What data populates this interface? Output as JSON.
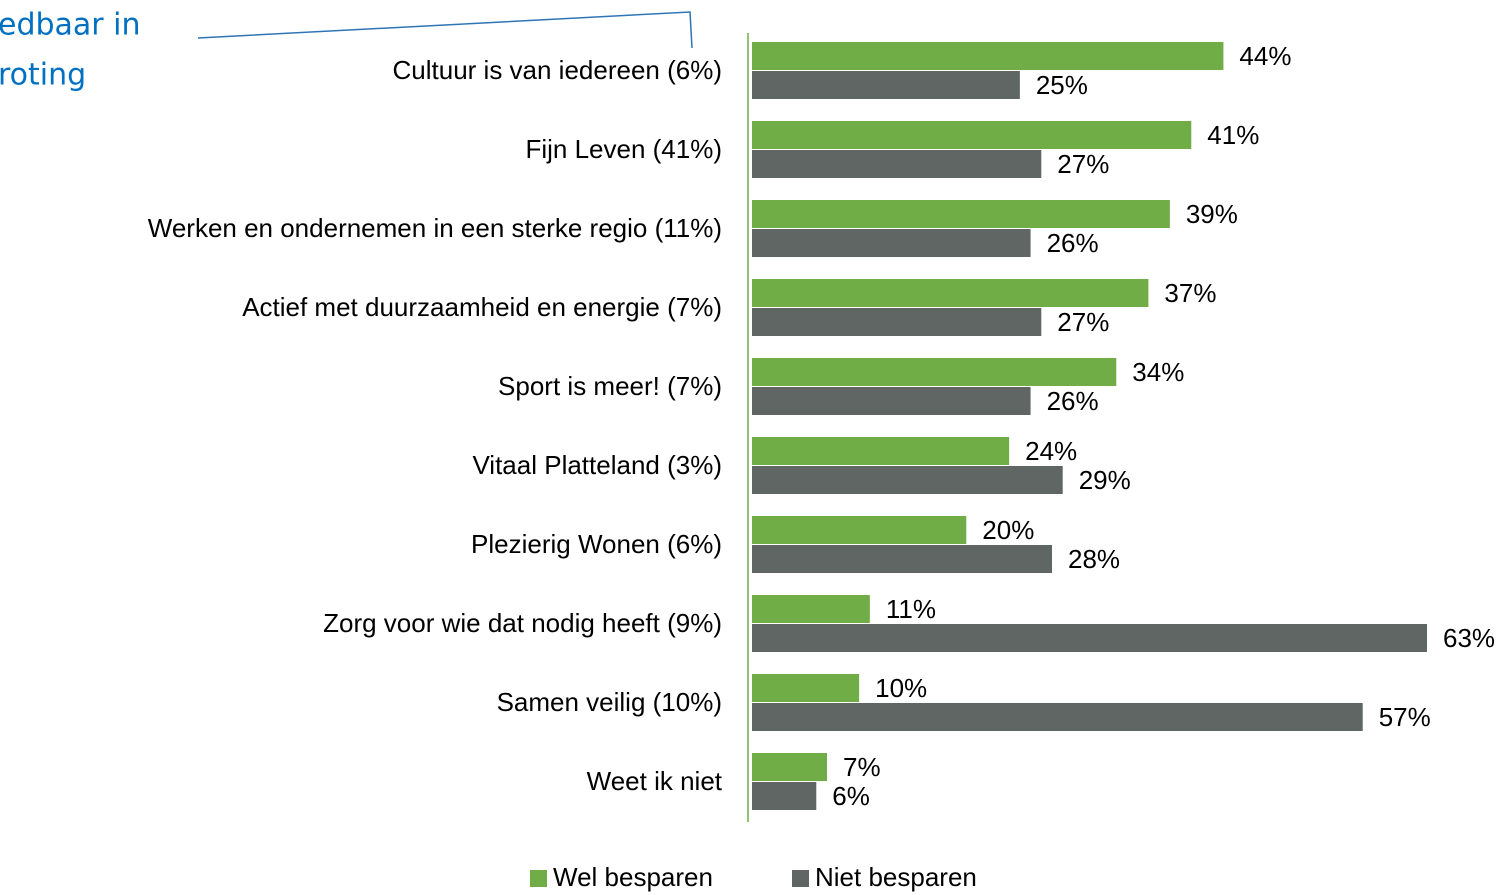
{
  "chart_data": {
    "type": "hbar",
    "annotations": [
      "edbaar in",
      "roting"
    ],
    "categories": [
      "Cultuur is van iedereen (6%)",
      "Fijn Leven (41%)",
      "Werken en ondernemen in een sterke regio (11%)",
      "Actief met duurzaamheid en energie (7%)",
      "Sport is meer! (7%)",
      "Vitaal Platteland (3%)",
      "Plezierig Wonen (6%)",
      "Zorg voor wie dat nodig heeft (9%)",
      "Samen veilig (10%)",
      "Weet ik niet"
    ],
    "series": [
      {
        "name": "Wel besparen",
        "color": "#70ad47",
        "values": [
          44,
          41,
          39,
          37,
          34,
          24,
          20,
          11,
          10,
          7
        ],
        "value_labels": [
          "44%",
          "41%",
          "39%",
          "37%",
          "34%",
          "24%",
          "20%",
          "11%",
          "10%",
          "7%"
        ]
      },
      {
        "name": "Niet besparen",
        "color": "#5f6664",
        "values": [
          25,
          27,
          26,
          27,
          26,
          29,
          28,
          63,
          57,
          6
        ],
        "value_labels": [
          "25%",
          "27%",
          "26%",
          "27%",
          "26%",
          "29%",
          "28%",
          "63%",
          "57%",
          "6%"
        ]
      }
    ],
    "legend": "bottom"
  }
}
